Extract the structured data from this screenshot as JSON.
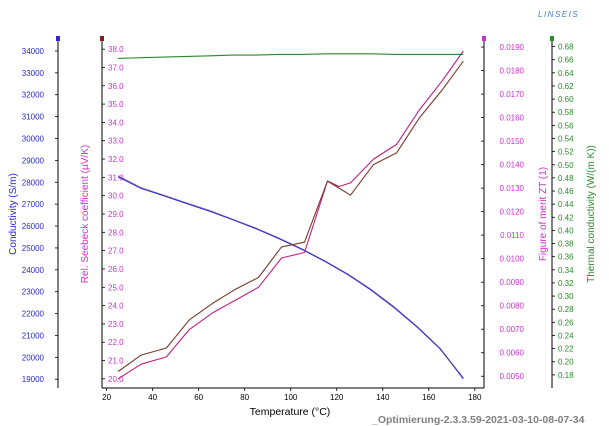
{
  "logo_text": "LINSEIS",
  "footer_text": "_Optimierung-2.3.3.59-2021-03-10-08-07-34",
  "colors": {
    "conductivity": "#2a2ad0",
    "seebeck": "#cc33cc",
    "zt": "#cc33cc",
    "thermal": "#2a8a2a",
    "seebeck_line": "#c02080",
    "zt_line": "#7a3a2a",
    "cond_line_a": "#3030c0",
    "cond_line_b": "#a080c0"
  },
  "chart_data": {
    "type": "line",
    "xlabel": "Temperature (°C)",
    "xlim": [
      18,
      184
    ],
    "xticks": [
      20,
      40,
      60,
      80,
      100,
      120,
      140,
      160,
      180
    ],
    "axes": [
      {
        "id": "conductivity",
        "label": "Conductivity (S/m)",
        "ylim": [
          18600,
          34500
        ],
        "ticks": [
          19000,
          20000,
          21000,
          22000,
          23000,
          24000,
          25000,
          26000,
          27000,
          28000,
          29000,
          30000,
          31000,
          32000,
          33000,
          34000
        ],
        "decimals": 0
      },
      {
        "id": "seebeck",
        "label": "Rel. Seebeck coefficient (µV/K)",
        "ylim": [
          19.5,
          38.5
        ],
        "ticks": [
          20.0,
          21.0,
          22.0,
          23.0,
          24.0,
          25.0,
          26.0,
          27.0,
          28.0,
          29.0,
          30.0,
          31.0,
          32.0,
          33.0,
          34.0,
          35.0,
          36.0,
          37.0,
          38.0
        ],
        "decimals": 1
      },
      {
        "id": "zt",
        "label": "Figure of merit ZT (1)",
        "ylim": [
          0.0045,
          0.0193
        ],
        "ticks": [
          0.005,
          0.006,
          0.007,
          0.008,
          0.009,
          0.01,
          0.011,
          0.012,
          0.013,
          0.014,
          0.015,
          0.016,
          0.017,
          0.018,
          0.019
        ],
        "decimals": 4
      },
      {
        "id": "thermal",
        "label": "Thermal conductivity (W/(m K))",
        "ylim": [
          0.16,
          0.69
        ],
        "ticks": [
          0.18,
          0.2,
          0.22,
          0.24,
          0.26,
          0.28,
          0.3,
          0.32,
          0.34,
          0.36,
          0.38,
          0.4,
          0.42,
          0.44,
          0.46,
          0.48,
          0.5,
          0.52,
          0.54,
          0.56,
          0.58,
          0.6,
          0.62,
          0.64,
          0.66,
          0.68
        ],
        "decimals": 2
      }
    ],
    "series": [
      {
        "axis": "conductivity",
        "x": [
          25,
          35,
          45,
          55,
          65,
          75,
          85,
          95,
          105,
          115,
          125,
          135,
          145,
          155,
          165,
          175
        ],
        "y": [
          28300,
          27750,
          27400,
          27050,
          26700,
          26300,
          25900,
          25450,
          24950,
          24400,
          23800,
          23100,
          22300,
          21400,
          20400,
          19000
        ]
      },
      {
        "axis": "conductivity",
        "x": [
          25,
          35,
          45,
          55,
          65,
          75,
          85,
          95,
          105,
          115,
          125,
          135,
          145,
          155,
          165,
          175
        ],
        "y": [
          28250,
          27720,
          27380,
          27020,
          26670,
          26280,
          25880,
          25420,
          24930,
          24380,
          23770,
          23070,
          22270,
          21380,
          20380,
          19050
        ]
      },
      {
        "axis": "seebeck",
        "x": [
          25,
          35,
          46,
          56,
          66,
          76,
          86,
          96,
          106,
          116,
          121,
          126,
          136,
          146,
          156,
          166,
          175
        ],
        "y": [
          20.0,
          20.8,
          21.2,
          22.7,
          23.6,
          24.3,
          25.0,
          26.6,
          26.9,
          30.8,
          30.5,
          30.7,
          32.0,
          32.8,
          34.7,
          36.3,
          37.9
        ]
      },
      {
        "axis": "zt",
        "x": [
          25,
          35,
          46,
          56,
          66,
          76,
          86,
          96,
          106,
          116,
          121,
          126,
          136,
          146,
          156,
          166,
          175
        ],
        "y": [
          0.0052,
          0.0059,
          0.0062,
          0.0074,
          0.0081,
          0.0087,
          0.0092,
          0.0105,
          0.0107,
          0.0133,
          0.013,
          0.0127,
          0.014,
          0.0145,
          0.016,
          0.0172,
          0.0184
        ]
      },
      {
        "axis": "thermal",
        "x": [
          25,
          35,
          45,
          55,
          65,
          75,
          85,
          95,
          105,
          115,
          125,
          135,
          145,
          155,
          165,
          175
        ],
        "y": [
          0.662,
          0.663,
          0.664,
          0.665,
          0.666,
          0.667,
          0.667,
          0.668,
          0.668,
          0.669,
          0.669,
          0.669,
          0.668,
          0.668,
          0.668,
          0.668
        ]
      }
    ]
  }
}
